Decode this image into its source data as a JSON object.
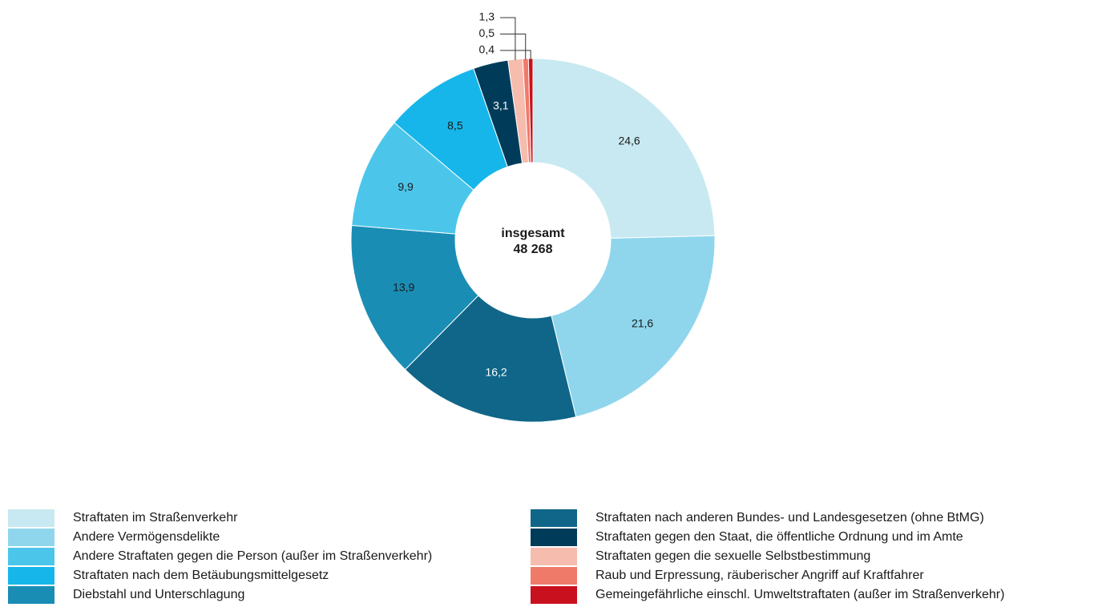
{
  "chart_data": {
    "type": "donut",
    "center_label": "insgesamt",
    "total": 48268,
    "total_label": "48 268",
    "categories": [
      "Straftaten im Straßenverkehr",
      "Andere Vermögensdelikte",
      "Straftaten nach anderen Bundes- und Landesgesetzen (ohne BtMG)",
      "Diebstahl und Unterschlagung",
      "Andere Straftaten gegen die Person (außer im Straßenverkehr)",
      "Straftaten nach dem Betäubungsmittelgesetz",
      "Straftaten gegen den Staat, die öffentliche Ordnung und im Amte",
      "Straftaten gegen die sexuelle Selbstbestimmung",
      "Raub und Erpressung, räuberischer Angriff auf Kraftfahrer",
      "Gemeingefährliche einschl. Umweltstraftaten (außer im Straßenverkehr)"
    ],
    "values": [
      24.6,
      21.6,
      16.2,
      13.9,
      9.9,
      8.5,
      3.1,
      1.3,
      0.5,
      0.4
    ],
    "value_labels": [
      "24,6",
      "21,6",
      "16,2",
      "13,9",
      "9,9",
      "8,5",
      "3,1",
      "1,3",
      "0,5",
      "0,4"
    ],
    "colors": [
      "#c8e9f1",
      "#8fd6ed",
      "#0f6688",
      "#1a8db5",
      "#4bc6ea",
      "#17b6ea",
      "#003c5a",
      "#f6bcae",
      "#f07a6a",
      "#c8101e"
    ]
  }
}
